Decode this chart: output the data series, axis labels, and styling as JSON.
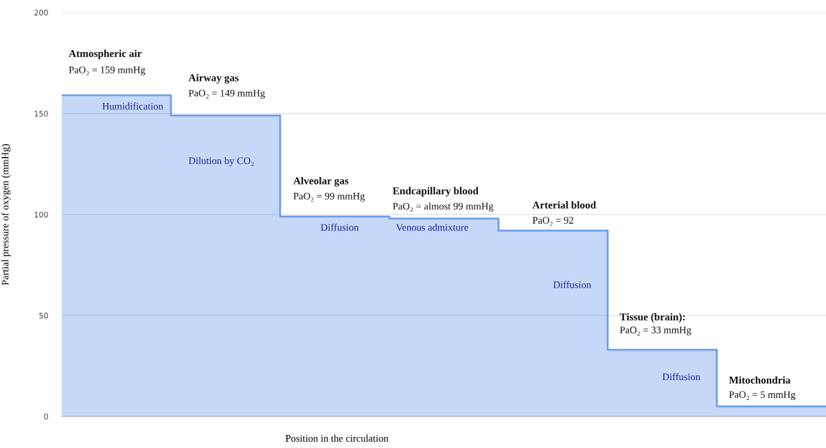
{
  "chart_data": {
    "type": "step",
    "categories": [
      null,
      null,
      null,
      null,
      null,
      null,
      null,
      null
    ],
    "series": [
      {
        "color": "#6d9eeb",
        "values": [
          159,
          149,
          99,
          98,
          92,
          33,
          5,
          5
        ],
        "lower": [
          0,
          0,
          0,
          0,
          0,
          0,
          0,
          0
        ],
        "upper": [
          159,
          149,
          99,
          98,
          92,
          33,
          5,
          5
        ]
      }
    ],
    "xlabel": "Position in the circulation",
    "ylabel": "Partial pressure of oxygen (mmHg)",
    "ylim": [
      0,
      200
    ],
    "yticks": [
      0,
      50,
      100,
      150,
      200
    ],
    "grid": "y",
    "annotations": [
      "Atmospheric air",
      "PaO₂ = 159 mmHg",
      "Humidification",
      "Airway gas",
      "PaO₂ = 149 mmHg",
      "Dilution by CO₂",
      "Alveolar gas",
      "PaO₂ = 99 mmHg",
      "Diffusion",
      "Endcapillary blood",
      "PaO₂ = almost 99 mmHg",
      "Venous admixture",
      "Arterial blood",
      "PaO₂ = 92",
      "Diffusion",
      "Tissue (brain):",
      "PaO₂ = 33 mmHg",
      "Diffusion",
      "Mitochondria",
      "PaO₂ = 5 mmHg"
    ]
  }
}
